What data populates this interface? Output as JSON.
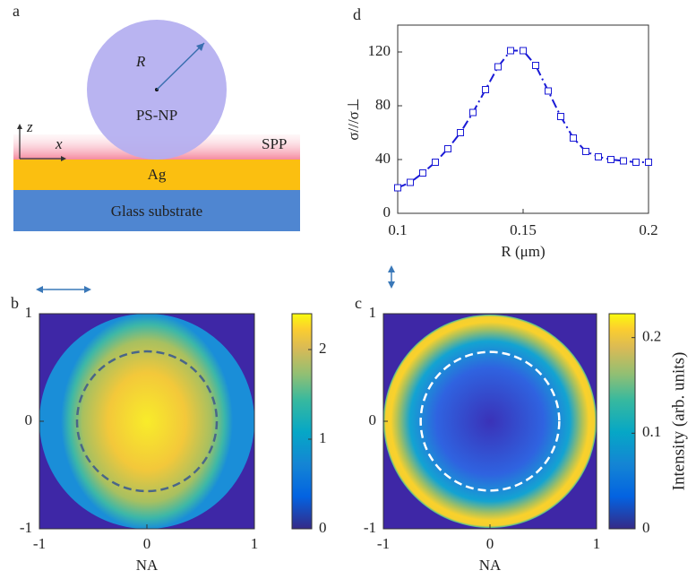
{
  "diagram": {
    "label": "a",
    "radius": "R",
    "particle": "PS-NP",
    "z": "z",
    "x": "x",
    "spp": "SPP",
    "metal": "Ag",
    "substrate": "Glass substrate"
  },
  "chart_data": [
    {
      "type": "line",
      "panel": "d",
      "x": [
        0.1,
        0.105,
        0.11,
        0.115,
        0.12,
        0.125,
        0.13,
        0.135,
        0.14,
        0.145,
        0.15,
        0.155,
        0.16,
        0.165,
        0.17,
        0.175,
        0.18,
        0.185,
        0.19,
        0.195,
        0.2
      ],
      "series": [
        {
          "color": "#1a1ad6",
          "values": [
            19,
            23,
            30,
            38,
            48,
            60,
            75,
            92,
            109,
            121,
            121,
            110,
            91,
            72,
            56,
            46,
            42,
            40,
            39,
            38,
            38
          ]
        }
      ],
      "xlabel": "R (μm)",
      "ylabel": "σ///σ⊥",
      "xlim": [
        0.1,
        0.2
      ],
      "ylim": [
        0,
        140
      ],
      "xticks": [
        0.1,
        0.15,
        0.2
      ],
      "yticks": [
        0,
        40,
        80,
        120
      ]
    },
    {
      "type": "heatmap",
      "panel": "b",
      "xlabel": "NA",
      "xlim": [
        -1,
        1
      ],
      "ylim": [
        -1,
        1
      ],
      "xticks": [
        -1,
        0,
        1
      ],
      "yticks": [
        -1,
        0,
        1
      ],
      "ring": 0.65,
      "ring_color": "#4a6688",
      "colorbar": {
        "lim": [
          0,
          2.4
        ],
        "ticks": [
          0,
          1,
          2
        ]
      }
    },
    {
      "type": "heatmap",
      "panel": "c",
      "xlabel": "NA",
      "xlim": [
        -1,
        1
      ],
      "ylim": [
        -1,
        1
      ],
      "xticks": [
        -1,
        0,
        1
      ],
      "yticks": [
        -1,
        0,
        1
      ],
      "ring": 0.65,
      "ring_color": "#ffffff",
      "colorbar": {
        "lim": [
          0,
          0.225
        ],
        "ticks": [
          0,
          0.1,
          0.2
        ],
        "label": "Intensity (arb. units)"
      }
    }
  ]
}
